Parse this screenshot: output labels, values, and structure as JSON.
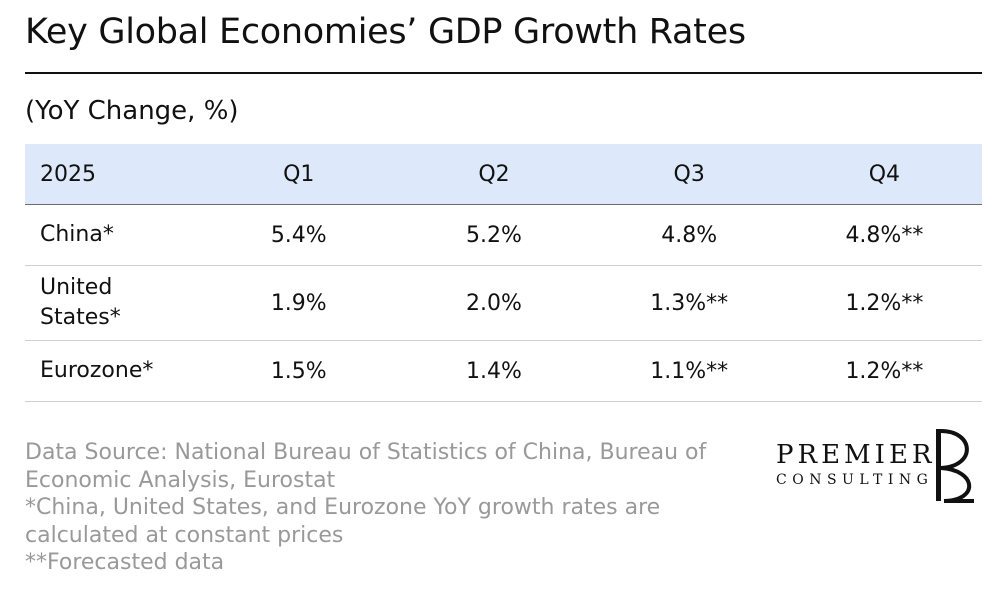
{
  "title": "Key Global Economies’ GDP Growth Rates",
  "subtitle": "(YoY Change, %)",
  "chart_data": {
    "type": "table",
    "title": "Key Global Economies’ GDP Growth Rates",
    "subtitle": "(YoY Change, %)",
    "header": [
      "2025",
      "Q1",
      "Q2",
      "Q3",
      "Q4"
    ],
    "rows": [
      {
        "label": "China*",
        "cells": [
          "5.4%",
          "5.2%",
          "4.8%",
          "4.8%**"
        ]
      },
      {
        "label": "United States*",
        "cells": [
          "1.9%",
          "2.0%",
          "1.3%**",
          "1.2%**"
        ]
      },
      {
        "label": "Eurozone*",
        "cells": [
          "1.5%",
          "1.4%",
          "1.1%**",
          "1.2%**"
        ]
      }
    ]
  },
  "notes": {
    "source": "Data Source: National Bureau of Statistics of China, Bureau of Economic Analysis, Eurostat",
    "constant_prices": "*China, United States, and Eurozone YoY growth rates are calculated at constant prices",
    "forecast": "**Forecasted data"
  },
  "logo": {
    "name": "PREMIER",
    "tagline": "CONSULTING",
    "icon": "pd-monogram-icon"
  },
  "colors": {
    "header_bg": "#dde9fa",
    "text": "#111111",
    "notes": "#999999"
  }
}
